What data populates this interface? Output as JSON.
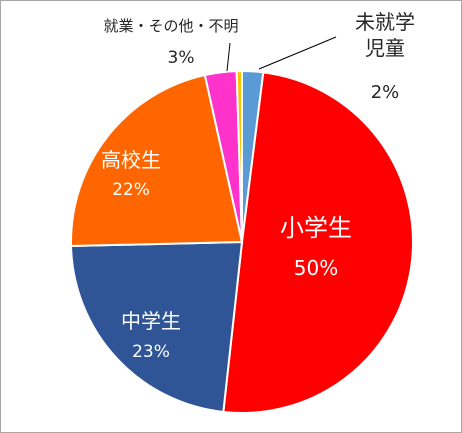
{
  "chart_data": {
    "type": "pie",
    "categories": [
      "未就学児童",
      "小学生",
      "中学生",
      "高校生",
      "就業・その他・不明",
      null
    ],
    "values": [
      2,
      50,
      23,
      22,
      3,
      0.5
    ],
    "value_labels": [
      "2%",
      "50%",
      "23%",
      "22%",
      "3%",
      null
    ],
    "colors": [
      "#5b9bd5",
      "#ff0000",
      "#2f5597",
      "#ff6600",
      "#ff33cc",
      "#ffc000"
    ]
  }
}
